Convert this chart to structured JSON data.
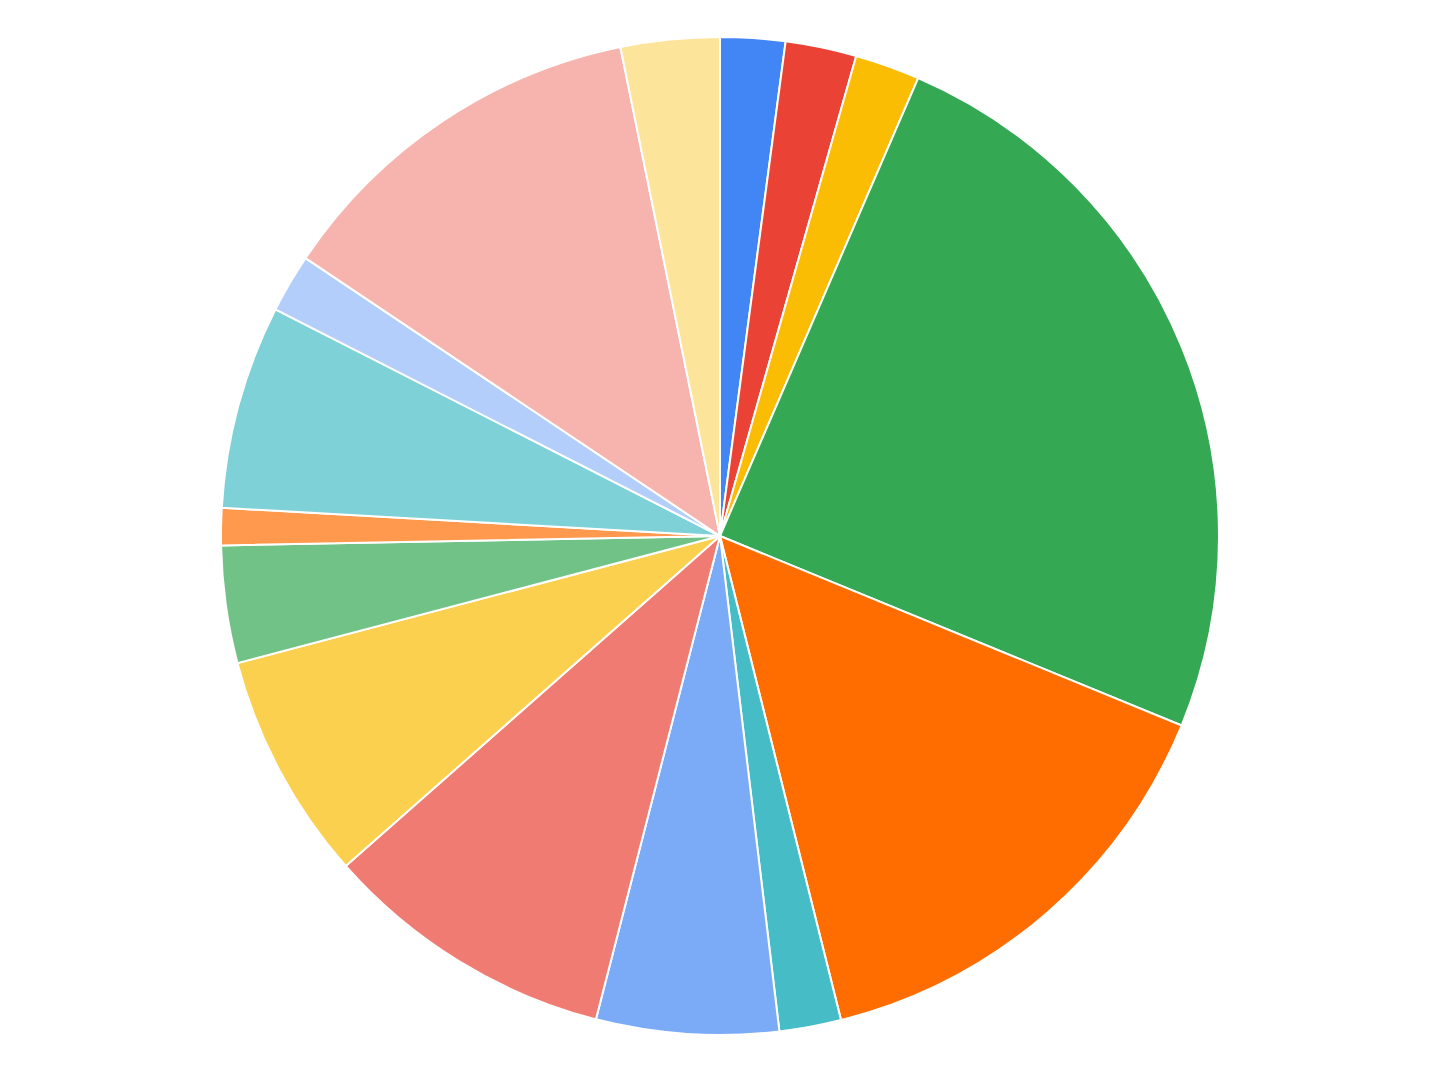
{
  "chart_data": {
    "type": "pie",
    "categories": [
      null,
      null,
      null,
      null,
      null,
      null,
      null,
      null,
      null,
      null,
      null,
      null,
      null,
      null,
      null
    ],
    "values": [
      2.1,
      2.3,
      2.1,
      24.7,
      14.9,
      2,
      5.9,
      9.5,
      7.4,
      3.8,
      1.2,
      6.6,
      1.9,
      12.4,
      3.2
    ],
    "colors": [
      "#4285f4",
      "#ea4335",
      "#fbbc04",
      "#34a853",
      "#ff6d01",
      "#46bdc6",
      "#7baaf7",
      "#f07b72",
      "#fcd04f",
      "#71c287",
      "#ff994d",
      "#7ed1d7",
      "#b3cefb",
      "#f7b4ae",
      "#fde49b"
    ],
    "legend": false
  }
}
